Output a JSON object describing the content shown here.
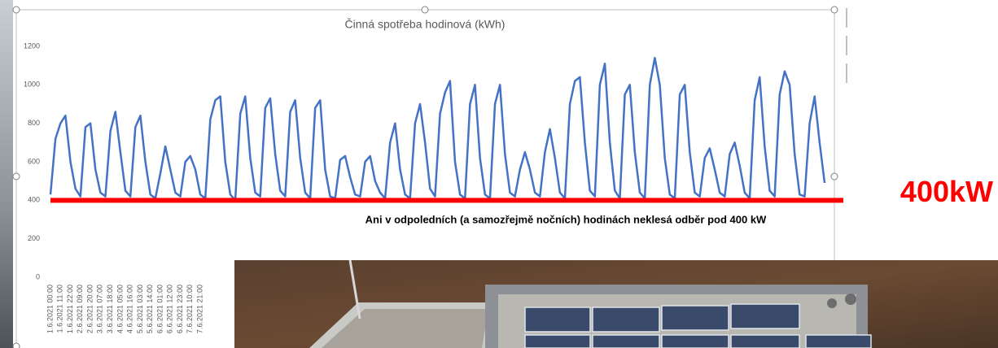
{
  "chart_data": {
    "type": "line",
    "title": "Činná spotřeba hodinová (kWh)",
    "categories": [
      "1.6.2021 00:00",
      null,
      "1.6.2021 11:00",
      null,
      "1.6.2021 22:00",
      null,
      "2.6.2021 09:00",
      null,
      "2.6.2021 20:00",
      null,
      "3.6.2021 07:00",
      null,
      "3.6.2021 18:00",
      null,
      "4.6.2021 05:00",
      null,
      "4.6.2021 16:00",
      null,
      "5.6.2021 03:00",
      null,
      "5.6.2021 14:00",
      null,
      "6.6.2021 01:00",
      null,
      "6.6.2021 12:00",
      null,
      "6.6.2021 23:00",
      null,
      "7.6.2021 10:00",
      null,
      "7.6.2021 21:00",
      null,
      null,
      null,
      null,
      null,
      null,
      null,
      null,
      null,
      null,
      null,
      null,
      null,
      null,
      null,
      null,
      null,
      null,
      null,
      null,
      null,
      null,
      null,
      null,
      null,
      null,
      null,
      null,
      null,
      null,
      null,
      null,
      null,
      null,
      null,
      null,
      null,
      null,
      null,
      null,
      null,
      null,
      null,
      null,
      null,
      null,
      null,
      null,
      null,
      null,
      null,
      null,
      null,
      null,
      null,
      null,
      null,
      null,
      null,
      null,
      null,
      null,
      null,
      null,
      null,
      null,
      null,
      null,
      null,
      null,
      null,
      null,
      null,
      null,
      null,
      null,
      null,
      null,
      null,
      null,
      null,
      null,
      null,
      null,
      null,
      null,
      null,
      null,
      null,
      null,
      null,
      null,
      null,
      null,
      null,
      null,
      null,
      null,
      null,
      null,
      null,
      null,
      null,
      null,
      null,
      null,
      null,
      null,
      null,
      null,
      null,
      null,
      null,
      null,
      null,
      null,
      null,
      null,
      null,
      null,
      null,
      null,
      null,
      null,
      null
    ],
    "series": [
      {
        "color": "#4472c4",
        "values": [
          430,
          720,
          800,
          840,
          600,
          460,
          420,
          780,
          800,
          560,
          440,
          420,
          760,
          860,
          650,
          450,
          420,
          780,
          840,
          600,
          430,
          410,
          540,
          680,
          560,
          440,
          420,
          600,
          630,
          560,
          430,
          410,
          820,
          920,
          940,
          600,
          430,
          400,
          850,
          940,
          620,
          440,
          420,
          880,
          930,
          640,
          450,
          420,
          860,
          920,
          620,
          440,
          410,
          880,
          920,
          560,
          420,
          410,
          610,
          630,
          520,
          430,
          420,
          600,
          630,
          500,
          440,
          410,
          700,
          800,
          560,
          430,
          410,
          800,
          900,
          700,
          460,
          420,
          850,
          960,
          1020,
          600,
          430,
          410,
          900,
          1000,
          620,
          430,
          410,
          900,
          1000,
          640,
          440,
          420,
          560,
          650,
          560,
          440,
          420,
          650,
          770,
          620,
          440,
          410,
          900,
          1020,
          1040,
          700,
          450,
          420,
          1000,
          1110,
          700,
          450,
          410,
          950,
          1000,
          650,
          440,
          410,
          1000,
          1140,
          1000,
          620,
          430,
          410,
          950,
          1000,
          650,
          440,
          420,
          620,
          670,
          560,
          440,
          420,
          640,
          700,
          580,
          440,
          410,
          920,
          1040,
          680,
          450,
          420,
          950,
          1070,
          1000,
          640,
          430,
          420,
          800,
          940,
          700,
          490
        ]
      }
    ],
    "ylim": [
      0,
      1200
    ],
    "yticks": [
      0,
      200,
      400,
      600,
      800,
      1000,
      1200
    ],
    "grid": false,
    "reference_line": {
      "value": 400,
      "color": "#ff0000",
      "label": "400kW"
    },
    "annotation": "Ani v odpoledních (a samozřejmě nočních) hodinách neklesá odběr pod 400 kW"
  }
}
